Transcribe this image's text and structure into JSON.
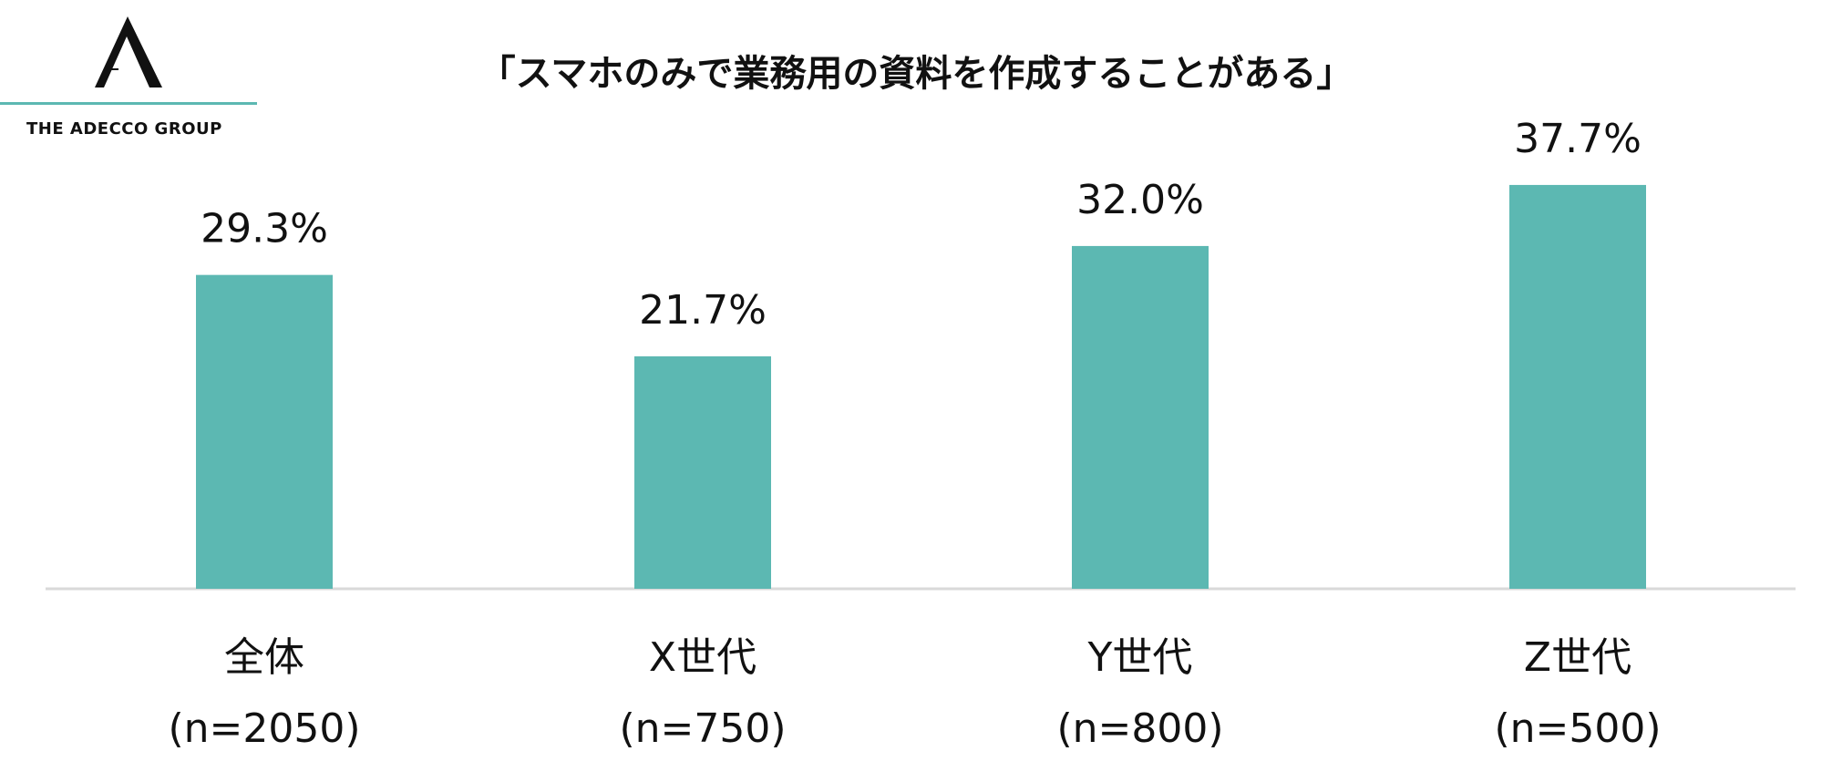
{
  "logo": {
    "text": "THE ADECCO GROUP"
  },
  "colors": {
    "bar": "#5cb8b2",
    "baseline": "#d9d9d9",
    "logo_rule": "#5cb8b2",
    "text": "#111111"
  },
  "chart_data": {
    "type": "bar",
    "title": "「スマホのみで業務用の資料を作成することがある」",
    "categories": [
      "全体",
      "X世代",
      "Y世代",
      "Z世代"
    ],
    "category_sublabels": [
      "(n=2050)",
      "(n=750)",
      "(n=800)",
      "(n=500)"
    ],
    "values": [
      29.3,
      21.7,
      32.0,
      37.7
    ],
    "value_labels": [
      "29.3%",
      "21.7%",
      "32.0%",
      "37.7%"
    ],
    "unit": "%",
    "ylim": [
      0,
      38.8
    ],
    "grid": false,
    "legend": "none",
    "xlabel": "",
    "ylabel": ""
  }
}
